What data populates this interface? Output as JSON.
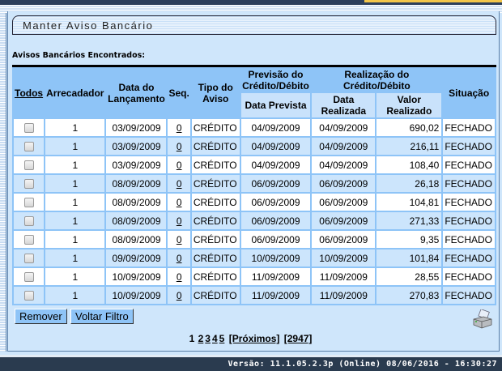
{
  "page": {
    "title": "Manter Aviso Bancário",
    "section_label": "Avisos Bancários Encontrados:"
  },
  "table": {
    "headers": {
      "todos": "Todos",
      "arrecadador": "Arrecadador",
      "data_lancamento": "Data do Lançamento",
      "seq": "Seq.",
      "tipo": "Tipo do Aviso",
      "previsao": "Previsão do Crédito/Débito",
      "realizacao": "Realização do Crédito/Débito",
      "data_prevista": "Data Prevista",
      "data_realizada": "Data Realizada",
      "valor_realizado": "Valor Realizado",
      "situacao": "Situação"
    },
    "rows": [
      {
        "arrecadador": "1",
        "data_lancamento": "03/09/2009",
        "seq": "0",
        "tipo": "CRÉDITO",
        "data_prevista": "04/09/2009",
        "data_realizada": "04/09/2009",
        "valor": "690,02",
        "situacao": "FECHADO"
      },
      {
        "arrecadador": "1",
        "data_lancamento": "03/09/2009",
        "seq": "0",
        "tipo": "CRÉDITO",
        "data_prevista": "04/09/2009",
        "data_realizada": "04/09/2009",
        "valor": "216,11",
        "situacao": "FECHADO"
      },
      {
        "arrecadador": "1",
        "data_lancamento": "03/09/2009",
        "seq": "0",
        "tipo": "CRÉDITO",
        "data_prevista": "04/09/2009",
        "data_realizada": "04/09/2009",
        "valor": "108,40",
        "situacao": "FECHADO"
      },
      {
        "arrecadador": "1",
        "data_lancamento": "08/09/2009",
        "seq": "0",
        "tipo": "CRÉDITO",
        "data_prevista": "06/09/2009",
        "data_realizada": "06/09/2009",
        "valor": "26,18",
        "situacao": "FECHADO"
      },
      {
        "arrecadador": "1",
        "data_lancamento": "08/09/2009",
        "seq": "0",
        "tipo": "CRÉDITO",
        "data_prevista": "06/09/2009",
        "data_realizada": "06/09/2009",
        "valor": "104,81",
        "situacao": "FECHADO"
      },
      {
        "arrecadador": "1",
        "data_lancamento": "08/09/2009",
        "seq": "0",
        "tipo": "CRÉDITO",
        "data_prevista": "06/09/2009",
        "data_realizada": "06/09/2009",
        "valor": "271,33",
        "situacao": "FECHADO"
      },
      {
        "arrecadador": "1",
        "data_lancamento": "08/09/2009",
        "seq": "0",
        "tipo": "CRÉDITO",
        "data_prevista": "06/09/2009",
        "data_realizada": "06/09/2009",
        "valor": "9,35",
        "situacao": "FECHADO"
      },
      {
        "arrecadador": "1",
        "data_lancamento": "09/09/2009",
        "seq": "0",
        "tipo": "CRÉDITO",
        "data_prevista": "10/09/2009",
        "data_realizada": "10/09/2009",
        "valor": "101,84",
        "situacao": "FECHADO"
      },
      {
        "arrecadador": "1",
        "data_lancamento": "10/09/2009",
        "seq": "0",
        "tipo": "CRÉDITO",
        "data_prevista": "11/09/2009",
        "data_realizada": "11/09/2009",
        "valor": "28,55",
        "situacao": "FECHADO"
      },
      {
        "arrecadador": "1",
        "data_lancamento": "10/09/2009",
        "seq": "0",
        "tipo": "CRÉDITO",
        "data_prevista": "11/09/2009",
        "data_realizada": "11/09/2009",
        "valor": "270,83",
        "situacao": "FECHADO"
      }
    ]
  },
  "buttons": {
    "remover": "Remover",
    "voltar_filtro": "Voltar Filtro"
  },
  "icons": {
    "print": "printer-icon"
  },
  "pagination": {
    "current": "1",
    "pages": [
      "2",
      "3",
      "4",
      "5"
    ],
    "next": "[Próximos]",
    "last": "[2947]"
  },
  "footer": {
    "version": "Versão: 11.1.05.2.3p (Online) 08/06/2016 - 16:30:27"
  }
}
